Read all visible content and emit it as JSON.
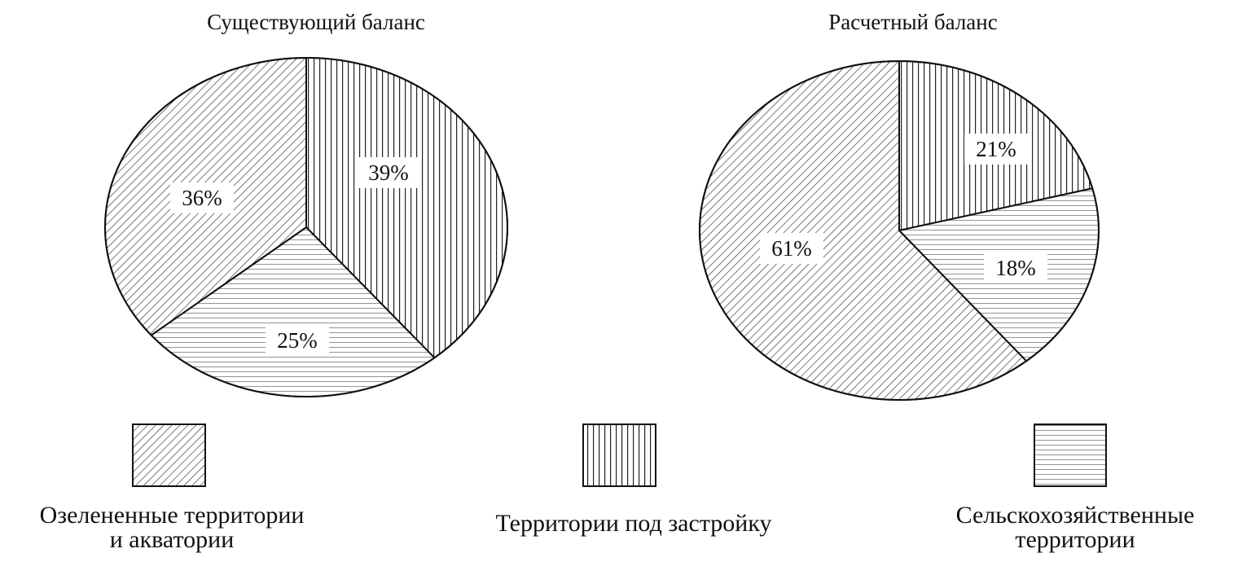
{
  "chart_data": [
    {
      "type": "pie",
      "title": "Существующий баланс",
      "slices": [
        {
          "label": "Территории под застройку",
          "value": 39,
          "pattern": "vertical",
          "display": "39%"
        },
        {
          "label": "Сельскохозяйственные территории",
          "value": 25,
          "pattern": "horizontal",
          "display": "25%"
        },
        {
          "label": "Озелененные территории и акватории",
          "value": 36,
          "pattern": "diagonal",
          "display": "36%"
        }
      ]
    },
    {
      "type": "pie",
      "title": "Расчетный баланс",
      "slices": [
        {
          "label": "Территории под застройку",
          "value": 21,
          "pattern": "vertical",
          "display": "21%"
        },
        {
          "label": "Сельскохозяйственные территории",
          "value": 18,
          "pattern": "horizontal",
          "display": "18%"
        },
        {
          "label": "Озелененные территории и акватории",
          "value": 61,
          "pattern": "diagonal",
          "display": "61%"
        }
      ]
    }
  ],
  "legend": [
    {
      "pattern": "diagonal",
      "lines": [
        "Озелененные территории",
        "и акватории"
      ]
    },
    {
      "pattern": "vertical",
      "lines": [
        "Территории под застройку"
      ]
    },
    {
      "pattern": "horizontal",
      "lines": [
        "Сельскохозяйственные",
        "территории"
      ]
    }
  ],
  "colors": {
    "stroke": "#111111",
    "background": "#ffffff",
    "text": "#111111"
  }
}
